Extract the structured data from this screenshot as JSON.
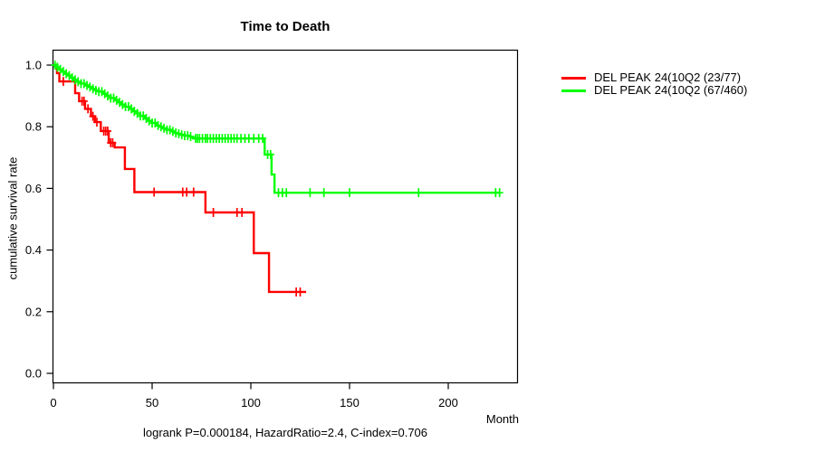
{
  "title": "Time to Death",
  "footer": "logrank P=0.000184, HazardRatio=2.4, C-index=0.706",
  "axes": {
    "x": {
      "label": "Month",
      "ticks": [
        {
          "label": "0",
          "value": 0
        },
        {
          "label": "50",
          "value": 50
        },
        {
          "label": "100",
          "value": 100
        },
        {
          "label": "150",
          "value": 150
        },
        {
          "label": "200",
          "value": 200
        }
      ],
      "max": 235
    },
    "y": {
      "label": "cumulative survival rate",
      "ticks": [
        {
          "label": "0.0",
          "value": 0.0
        },
        {
          "label": "0.2",
          "value": 0.2
        },
        {
          "label": "0.4",
          "value": 0.4
        },
        {
          "label": "0.6",
          "value": 0.6
        },
        {
          "label": "0.8",
          "value": 0.8
        },
        {
          "label": "1.0",
          "value": 1.0
        }
      ]
    }
  },
  "legend": {
    "items": [
      {
        "label": "DEL PEAK 24(10Q2 (23/77)",
        "color": "#ff0000"
      },
      {
        "label": "DEL PEAK 24(10Q2 (67/460)",
        "color": "#00ff00"
      }
    ]
  },
  "chart_data": {
    "type": "line",
    "subtype": "kaplan_meier_step",
    "title": "Time to Death",
    "xlabel": "Month",
    "ylabel": "cumulative survival rate",
    "xlim": [
      0,
      235
    ],
    "ylim": [
      0.0,
      1.0
    ],
    "grid": false,
    "legend_position": "right-outside",
    "annotation": "logrank P=0.000184, HazardRatio=2.4, C-index=0.706",
    "series": [
      {
        "name": "DEL PEAK 24(10Q2 (23/77)",
        "color": "#ff0000",
        "end_month": 128,
        "steps": [
          [
            0,
            1.0
          ],
          [
            1.8,
            0.974
          ],
          [
            3,
            0.947
          ],
          [
            11,
            0.909
          ],
          [
            13,
            0.883
          ],
          [
            16,
            0.858
          ],
          [
            19,
            0.834
          ],
          [
            21,
            0.815
          ],
          [
            24,
            0.786
          ],
          [
            28,
            0.748
          ],
          [
            31,
            0.733
          ],
          [
            36.2,
            0.663
          ],
          [
            41,
            0.588
          ],
          [
            77,
            0.522
          ],
          [
            101.5,
            0.39
          ],
          [
            109.2,
            0.264
          ]
        ],
        "censor_months": [
          5,
          14.5,
          15.5,
          17.5,
          20,
          22,
          25.5,
          26.5,
          27.5,
          29,
          30,
          51,
          65.5,
          67.5,
          71,
          81,
          93,
          95.5,
          123,
          125
        ]
      },
      {
        "name": "DEL PEAK 24(10Q2 (67/460)",
        "color": "#00ff00",
        "end_month": 226,
        "steps": [
          [
            0,
            1.0
          ],
          [
            1.5,
            0.993
          ],
          [
            3,
            0.986
          ],
          [
            4.5,
            0.979
          ],
          [
            6,
            0.972
          ],
          [
            7.5,
            0.966
          ],
          [
            9,
            0.959
          ],
          [
            10.5,
            0.952
          ],
          [
            12,
            0.946
          ],
          [
            14,
            0.94
          ],
          [
            16,
            0.934
          ],
          [
            18,
            0.929
          ],
          [
            20,
            0.923
          ],
          [
            21.5,
            0.918
          ],
          [
            23,
            0.914
          ],
          [
            25,
            0.907
          ],
          [
            27,
            0.9
          ],
          [
            29,
            0.893
          ],
          [
            31,
            0.886
          ],
          [
            33,
            0.879
          ],
          [
            34.5,
            0.872
          ],
          [
            36.5,
            0.865
          ],
          [
            38.5,
            0.858
          ],
          [
            40.5,
            0.85
          ],
          [
            42.5,
            0.843
          ],
          [
            44,
            0.835
          ],
          [
            46,
            0.827
          ],
          [
            48,
            0.819
          ],
          [
            50,
            0.812
          ],
          [
            52,
            0.804
          ],
          [
            53.5,
            0.8
          ],
          [
            55.5,
            0.795
          ],
          [
            57.5,
            0.79
          ],
          [
            59.5,
            0.785
          ],
          [
            61,
            0.78
          ],
          [
            62.5,
            0.777
          ],
          [
            64.5,
            0.774
          ],
          [
            66.5,
            0.771
          ],
          [
            68.5,
            0.768
          ],
          [
            70,
            0.765
          ],
          [
            71,
            0.762
          ],
          [
            107,
            0.71
          ],
          [
            110.5,
            0.645
          ],
          [
            112,
            0.586
          ]
        ],
        "censor_months": [
          0.8,
          2,
          3.5,
          5,
          6.5,
          8,
          9.5,
          11,
          12.5,
          14,
          15.5,
          17,
          18.5,
          20,
          21.5,
          23,
          24.5,
          26,
          27.5,
          29,
          30.5,
          32,
          33.5,
          35,
          36.5,
          38,
          39.5,
          41,
          42.5,
          44,
          45.5,
          47,
          48.5,
          50,
          51.5,
          53,
          54.5,
          56,
          57.5,
          59,
          60.5,
          62,
          63.5,
          65,
          66.5,
          68,
          69.5,
          72,
          73,
          74,
          75.5,
          77,
          78,
          79.5,
          81,
          82.5,
          84,
          85.5,
          87,
          88.5,
          90,
          91.5,
          93,
          95,
          97,
          99,
          101.5,
          104,
          106,
          108.5,
          110,
          114,
          116,
          118,
          130,
          137,
          150,
          185,
          224,
          226
        ]
      }
    ]
  }
}
